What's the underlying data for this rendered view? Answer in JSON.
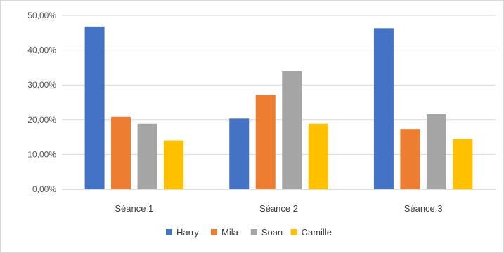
{
  "chart_data": {
    "type": "bar",
    "categories": [
      "Séance 1",
      "Séance 2",
      "Séance 3"
    ],
    "series": [
      {
        "name": "Harry",
        "values": [
          46.8,
          20.3,
          46.3
        ],
        "color": "#4472C4"
      },
      {
        "name": "Mila",
        "values": [
          20.8,
          27.1,
          17.3
        ],
        "color": "#ED7D31"
      },
      {
        "name": "Soan",
        "values": [
          18.8,
          33.9,
          21.6
        ],
        "color": "#A5A5A5"
      },
      {
        "name": "Camille",
        "values": [
          14.0,
          18.8,
          14.4
        ],
        "color": "#FFC000"
      }
    ],
    "yticks": [
      "0,00%",
      "10,00%",
      "20,00%",
      "30,00%",
      "40,00%",
      "50,00%"
    ],
    "ylim": [
      0,
      50
    ],
    "grid": true,
    "legend_position": "bottom"
  }
}
